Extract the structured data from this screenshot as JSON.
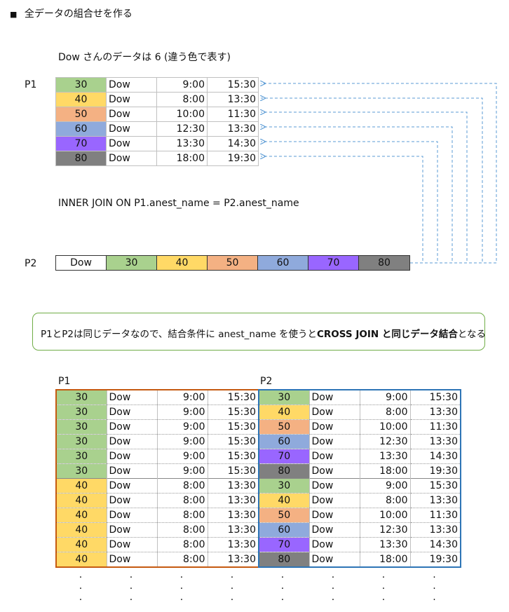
{
  "heading": {
    "bullet": "■",
    "text": "全データの組合せを作る"
  },
  "note": "Dow さんのデータは 6 (違う色で表す)",
  "p1": {
    "label": "P1",
    "rows": [
      {
        "id": "30",
        "name": "Dow",
        "start": "9:00",
        "end": "15:30"
      },
      {
        "id": "40",
        "name": "Dow",
        "start": "8:00",
        "end": "13:30"
      },
      {
        "id": "50",
        "name": "Dow",
        "start": "10:00",
        "end": "11:30"
      },
      {
        "id": "60",
        "name": "Dow",
        "start": "12:30",
        "end": "13:30"
      },
      {
        "id": "70",
        "name": "Dow",
        "start": "13:30",
        "end": "14:30"
      },
      {
        "id": "80",
        "name": "Dow",
        "start": "18:00",
        "end": "19:30"
      }
    ]
  },
  "join_text": "INNER JOIN ON P1.anest_name = P2.anest_name",
  "p2": {
    "label": "P2",
    "cells": [
      "Dow",
      "30",
      "40",
      "50",
      "60",
      "70",
      "80"
    ]
  },
  "callout": {
    "prefix": "P1とP2は同じデータなので、結合条件に anest_name を使うと",
    "bold": "CROSS JOIN と同じデータ結合",
    "suffix": "となる"
  },
  "result": {
    "p1_label": "P1",
    "p2_label": "P2",
    "rows": [
      [
        "30",
        "Dow",
        "9:00",
        "15:30",
        "30",
        "Dow",
        "9:00",
        "15:30"
      ],
      [
        "30",
        "Dow",
        "9:00",
        "15:30",
        "40",
        "Dow",
        "8:00",
        "13:30"
      ],
      [
        "30",
        "Dow",
        "9:00",
        "15:30",
        "50",
        "Dow",
        "10:00",
        "11:30"
      ],
      [
        "30",
        "Dow",
        "9:00",
        "15:30",
        "60",
        "Dow",
        "12:30",
        "13:30"
      ],
      [
        "30",
        "Dow",
        "9:00",
        "15:30",
        "70",
        "Dow",
        "13:30",
        "14:30"
      ],
      [
        "30",
        "Dow",
        "9:00",
        "15:30",
        "80",
        "Dow",
        "18:00",
        "19:30"
      ],
      [
        "40",
        "Dow",
        "8:00",
        "13:30",
        "30",
        "Dow",
        "9:00",
        "15:30"
      ],
      [
        "40",
        "Dow",
        "8:00",
        "13:30",
        "40",
        "Dow",
        "8:00",
        "13:30"
      ],
      [
        "40",
        "Dow",
        "8:00",
        "13:30",
        "50",
        "Dow",
        "10:00",
        "11:30"
      ],
      [
        "40",
        "Dow",
        "8:00",
        "13:30",
        "60",
        "Dow",
        "12:30",
        "13:30"
      ],
      [
        "40",
        "Dow",
        "8:00",
        "13:30",
        "70",
        "Dow",
        "13:30",
        "14:30"
      ],
      [
        "40",
        "Dow",
        "8:00",
        "13:30",
        "80",
        "Dow",
        "18:00",
        "19:30"
      ]
    ],
    "ellipsis": "."
  },
  "colors": {
    "30": "#a9d18e",
    "40": "#ffd966",
    "50": "#f4b183",
    "60": "#8faadc",
    "70": "#9966ff",
    "80": "#808080",
    "arrow": "#5b9bd5",
    "p1_border": "#c55a11",
    "p2_border": "#2e75b6",
    "callout_border": "#70ad47"
  }
}
